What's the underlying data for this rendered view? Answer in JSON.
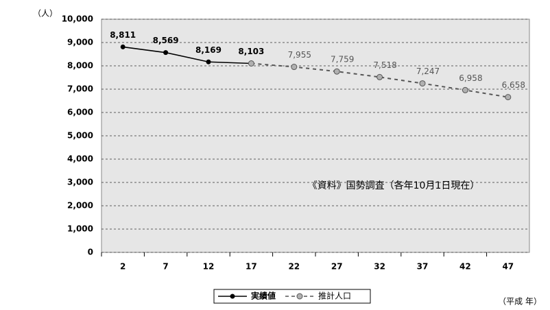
{
  "chart_data": {
    "type": "line",
    "y_label": "（人）",
    "x_label": "（平成 年）",
    "annotation": "《資料》国勢調査（各年10月1日現在）",
    "categories": [
      "2",
      "7",
      "12",
      "17",
      "22",
      "27",
      "32",
      "37",
      "42",
      "47"
    ],
    "series": [
      {
        "name": "実績値",
        "color": "#000000",
        "dashed": false,
        "values": [
          8811,
          8569,
          8169,
          8103,
          null,
          null,
          null,
          null,
          null,
          null
        ],
        "value_labels": [
          "8,811",
          "8,569",
          "8,169",
          "8,103",
          null,
          null,
          null,
          null,
          null,
          null
        ]
      },
      {
        "name": "推計人口",
        "color": "#555555",
        "marker_color": "#b0b0b0",
        "dashed": true,
        "values": [
          null,
          null,
          null,
          8103,
          7955,
          7759,
          7518,
          7247,
          6958,
          6658
        ],
        "value_labels": [
          null,
          null,
          null,
          null,
          "7,955",
          "7,759",
          "7,518",
          "7,247",
          "6,958",
          "6,658"
        ]
      }
    ],
    "ylim": [
      0,
      10000
    ],
    "yticks": [
      0,
      {
        "value": 1000,
        "label": "1,000"
      },
      {
        "value": 2000,
        "label": "2,000"
      },
      {
        "value": 3000,
        "label": "3,000"
      },
      {
        "value": 4000,
        "label": "4,000"
      },
      {
        "value": 5000,
        "label": "5,000"
      },
      {
        "value": 6000,
        "label": "6,000"
      },
      {
        "value": 7000,
        "label": "7,000"
      },
      {
        "value": 8000,
        "label": "8,000"
      },
      {
        "value": 9000,
        "label": "9,000"
      },
      {
        "value": 10000,
        "label": "10,000"
      }
    ],
    "grid": true
  }
}
